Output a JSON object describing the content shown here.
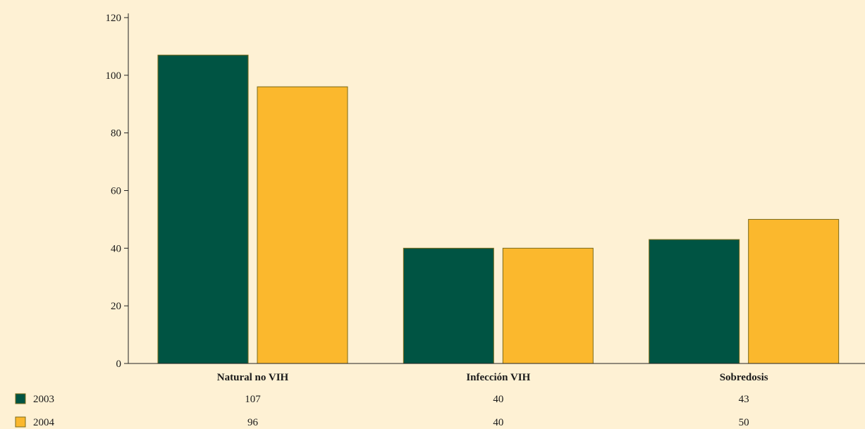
{
  "chart_data": {
    "type": "bar",
    "categories": [
      "Natural no VIH",
      "Infección VIH",
      "Sobredosis"
    ],
    "series": [
      {
        "name": "2003",
        "values": [
          107,
          40,
          43
        ],
        "color": "#005443"
      },
      {
        "name": "2004",
        "values": [
          96,
          40,
          50
        ],
        "color": "#fbb82d"
      }
    ],
    "ylim": [
      0,
      120
    ],
    "yticks": [
      0,
      20,
      40,
      60,
      80,
      100,
      120
    ],
    "grid": false,
    "legend": "bottom-left, as data table rows",
    "background": "#fef1d4",
    "bar_border": "#7a6a1a"
  }
}
